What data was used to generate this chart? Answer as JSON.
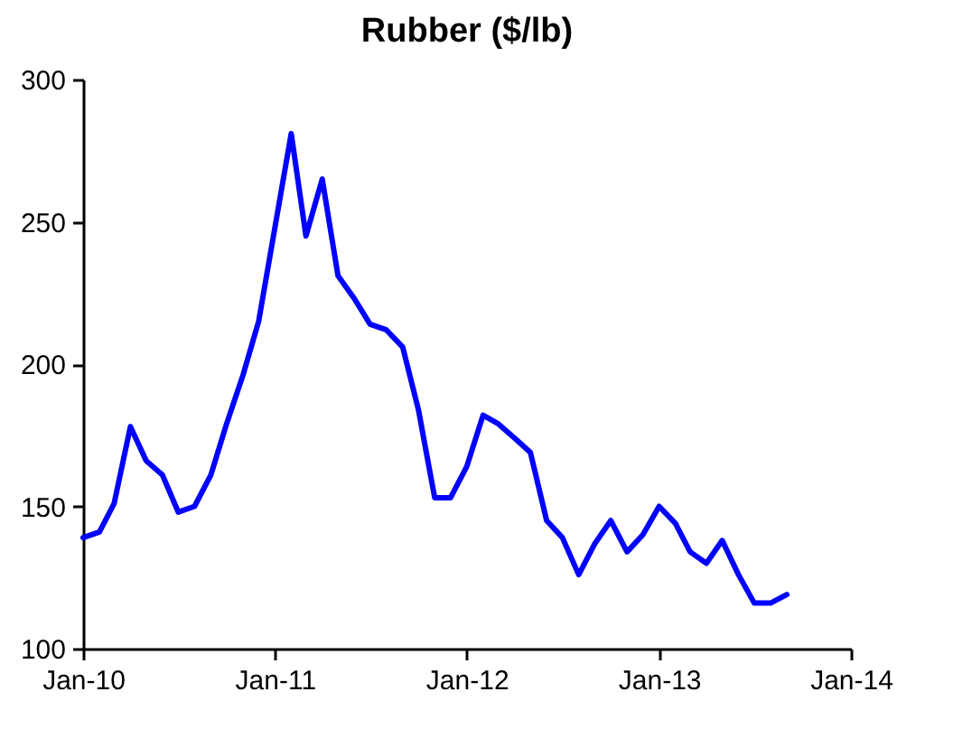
{
  "chart_data": {
    "type": "line",
    "title": "Rubber ($/lb)",
    "x": [
      "2010-01",
      "2010-02",
      "2010-03",
      "2010-04",
      "2010-05",
      "2010-06",
      "2010-07",
      "2010-08",
      "2010-09",
      "2010-10",
      "2010-11",
      "2010-12",
      "2011-01",
      "2011-02",
      "2011-03",
      "2011-04",
      "2011-05",
      "2011-06",
      "2011-07",
      "2011-08",
      "2011-09",
      "2011-10",
      "2011-11",
      "2011-12",
      "2012-01",
      "2012-02",
      "2012-03",
      "2012-04",
      "2012-05",
      "2012-06",
      "2012-07",
      "2012-08",
      "2012-09",
      "2012-10",
      "2012-11",
      "2012-12",
      "2013-01",
      "2013-02",
      "2013-03",
      "2013-04",
      "2013-05",
      "2013-06",
      "2013-07",
      "2013-08",
      "2013-09"
    ],
    "series": [
      {
        "color": "#0000ff",
        "values": [
          139,
          141,
          151,
          178,
          166,
          161,
          148,
          150,
          161,
          179,
          196,
          215,
          248,
          281,
          245,
          265,
          231,
          223,
          214,
          212,
          206,
          184,
          153,
          153,
          164,
          182,
          179,
          174,
          169,
          145,
          139,
          126,
          137,
          145,
          134,
          140,
          150,
          144,
          134,
          130,
          138,
          126,
          116,
          116,
          119
        ]
      }
    ],
    "xlim": [
      "2010-01",
      "2014-01"
    ],
    "xticks": [
      {
        "value": "2010-01",
        "label": "Jan-10"
      },
      {
        "value": "2011-01",
        "label": "Jan-11"
      },
      {
        "value": "2012-01",
        "label": "Jan-12"
      },
      {
        "value": "2013-01",
        "label": "Jan-13"
      },
      {
        "value": "2014-01",
        "label": "Jan-14"
      }
    ],
    "ylim": [
      100,
      300
    ],
    "yticks": [
      100,
      150,
      200,
      250,
      300
    ],
    "grid": false,
    "marker": "none",
    "line_style": "solid"
  }
}
